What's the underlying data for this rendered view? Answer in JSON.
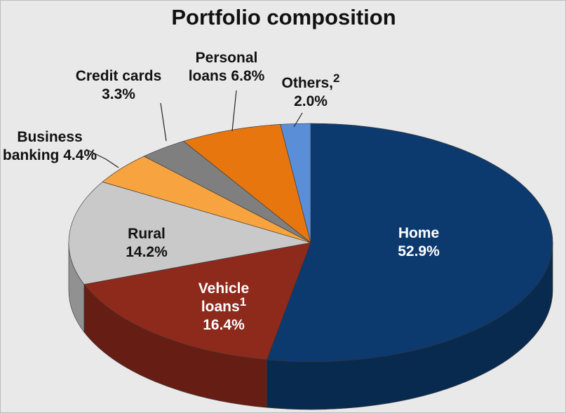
{
  "chart_data": {
    "type": "pie3d",
    "title": "Portfolio composition",
    "categories": [
      "Home",
      "Vehicle loans",
      "Rural",
      "Business banking",
      "Credit cards",
      "Personal loans",
      "Others,"
    ],
    "values": [
      52.9,
      16.4,
      14.2,
      4.4,
      3.3,
      6.8,
      2.0
    ],
    "value_labels": [
      "52.9%",
      "16.4%",
      "14.2%",
      "4.4%",
      "3.3%",
      "6.8%",
      "2.0%"
    ],
    "colors": [
      "#0d3a6e",
      "#8e2a1c",
      "#c9c9c9",
      "#f7a33f",
      "#7f7f7f",
      "#e8760f",
      "#5a8fd8"
    ],
    "annotations": [
      {
        "text": "1",
        "category": "Vehicle loans"
      },
      {
        "text": "2",
        "category": "Others,"
      }
    ]
  }
}
